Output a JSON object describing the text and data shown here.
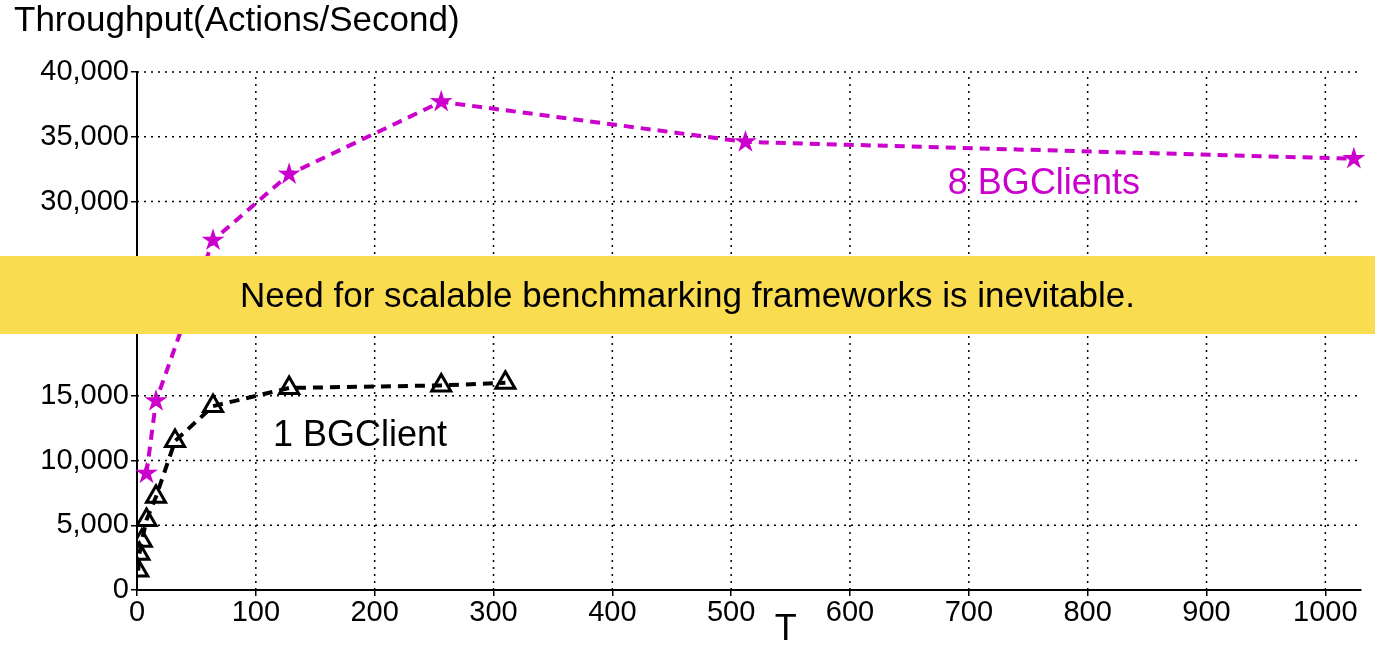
{
  "chart_data": {
    "type": "line",
    "ylabel": "Throughput(Actions/Second)",
    "xlabel": "T",
    "annotations": [
      "Need for scalable benchmarking frameworks is inevitable."
    ],
    "series": [
      {
        "name": "8 BGClients",
        "color": "#cc00cc",
        "marker": "star",
        "line_style": "dashed",
        "x": [
          8,
          16,
          64,
          128,
          256,
          512,
          1024
        ],
        "values": [
          9000,
          14600,
          27000,
          32100,
          37700,
          34600,
          33300
        ]
      },
      {
        "name": "1 BGClient",
        "color": "#000000",
        "marker": "triangle",
        "line_style": "dashed",
        "x": [
          1,
          2,
          4,
          8,
          16,
          32,
          64,
          128,
          256,
          310
        ],
        "values": [
          1500,
          2800,
          3800,
          5400,
          7200,
          11500,
          14200,
          15600,
          15800,
          16000
        ]
      }
    ],
    "xlim": [
      0,
      1030
    ],
    "xticks": [
      0,
      100,
      200,
      300,
      400,
      500,
      600,
      700,
      800,
      900,
      1000
    ],
    "ylim": [
      0,
      40000
    ],
    "yticks": [
      0,
      {
        "value": 5000,
        "label": "5,000"
      },
      {
        "value": 10000,
        "label": "10,000"
      },
      {
        "value": 15000,
        "label": "15,000"
      },
      {
        "value": 20000,
        "label": null
      },
      {
        "value": 25000,
        "label": null
      },
      {
        "value": 30000,
        "label": "30,000"
      },
      {
        "value": 35000,
        "label": "35,000"
      },
      {
        "value": 40000,
        "label": "40,000"
      }
    ],
    "grid": true,
    "legend": false
  }
}
